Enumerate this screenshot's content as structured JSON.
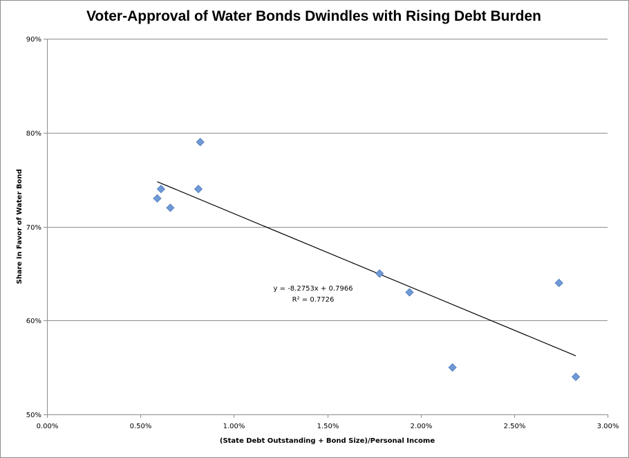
{
  "chart_data": {
    "type": "scatter",
    "title": "Voter-Approval of Water Bonds Dwindles with Rising Debt Burden",
    "xlabel": "(State Debt Outstanding + Bond Size)/Personal Income",
    "ylabel": "Share In Favor of Water Bond",
    "xlim": [
      0,
      0.03
    ],
    "ylim": [
      0.5,
      0.9
    ],
    "x_ticks": [
      0,
      0.005,
      0.01,
      0.015,
      0.02,
      0.025,
      0.03
    ],
    "x_tick_labels": [
      "0.00%",
      "0.50%",
      "1.00%",
      "1.50%",
      "2.00%",
      "2.50%",
      "3.00%"
    ],
    "y_ticks": [
      0.5,
      0.6,
      0.7,
      0.8,
      0.9
    ],
    "y_tick_labels": [
      "50%",
      "60%",
      "70%",
      "80%",
      "90%"
    ],
    "grid": "horizontal",
    "marker_color": "#6f9ad6",
    "trendline_color": "#000000",
    "points": [
      {
        "x": 0.0059,
        "y": 0.73
      },
      {
        "x": 0.0061,
        "y": 0.74
      },
      {
        "x": 0.0066,
        "y": 0.72
      },
      {
        "x": 0.0081,
        "y": 0.74
      },
      {
        "x": 0.0082,
        "y": 0.79
      },
      {
        "x": 0.0178,
        "y": 0.65
      },
      {
        "x": 0.0194,
        "y": 0.63
      },
      {
        "x": 0.0217,
        "y": 0.55
      },
      {
        "x": 0.0274,
        "y": 0.64
      },
      {
        "x": 0.0283,
        "y": 0.54
      }
    ],
    "trendline": {
      "slope": -8.2753,
      "intercept": 0.7966,
      "x_range": [
        0.0059,
        0.0283
      ],
      "equation_label": "y = -8.2753x + 0.7966",
      "r2_label": "R² = 0.7726"
    }
  }
}
